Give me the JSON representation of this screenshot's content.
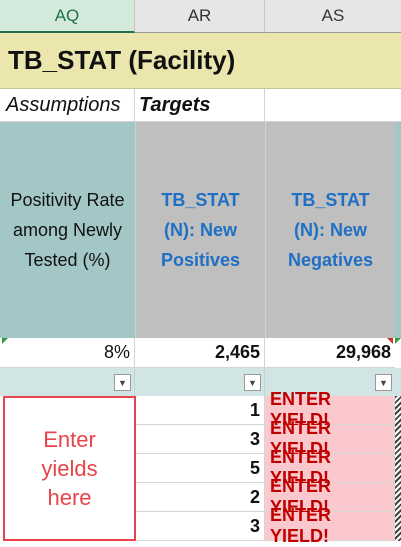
{
  "columns": [
    "AQ",
    "AR",
    "AS"
  ],
  "title": "TB_STAT (Facility)",
  "row3": {
    "assumptions": "Assumptions",
    "targets": "Targets"
  },
  "headers": {
    "aq": "Positivity Rate among Newly Tested (%)",
    "ar": "TB_STAT (N): New Positives",
    "as": "TB_STAT (N): New Negatives"
  },
  "values": {
    "aq": "8%",
    "ar": "2,465",
    "as": "29,968"
  },
  "rows": [
    {
      "count": "1",
      "status": "ENTER YIELD!"
    },
    {
      "count": "3",
      "status": "ENTER YIELD!"
    },
    {
      "count": "5",
      "status": "ENTER YIELD!"
    },
    {
      "count": "2",
      "status": "ENTER YIELD!"
    },
    {
      "count": "3",
      "status": "ENTER YIELD!"
    }
  ],
  "annotation": "Enter yields here",
  "colors": {
    "header_teal": "#a3c7c6",
    "header_gray": "#bfbfbf",
    "link_blue": "#1f6fc5",
    "yield_bg": "#fbc9cd",
    "yield_text": "#c00000",
    "annotation_red": "#e8444a"
  }
}
